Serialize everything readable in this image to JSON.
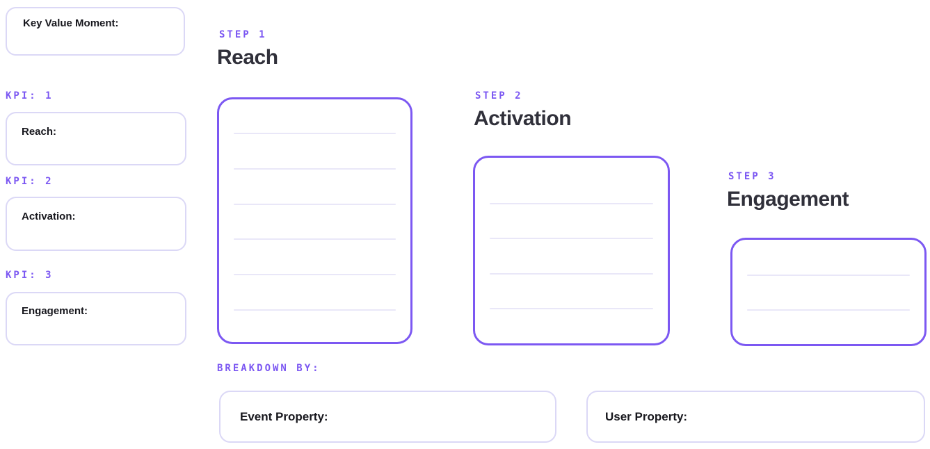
{
  "sidebar": {
    "key_value_moment_label": "Key Value Moment:",
    "kpis": [
      {
        "tag": "KPI: 1",
        "label": "Reach:"
      },
      {
        "tag": "KPI: 2",
        "label": "Activation:"
      },
      {
        "tag": "KPI: 3",
        "label": "Engagement:"
      }
    ]
  },
  "steps": [
    {
      "tag": "STEP 1",
      "title": "Reach",
      "note_lines": 6
    },
    {
      "tag": "STEP 2",
      "title": "Activation",
      "note_lines": 4
    },
    {
      "tag": "STEP 3",
      "title": "Engagement",
      "note_lines": 2
    }
  ],
  "breakdown": {
    "tag": "BREAKDOWN BY:",
    "fields": [
      {
        "label": "Event Property:"
      },
      {
        "label": "User Property:"
      }
    ]
  },
  "colors": {
    "accent_purple": "#7C58F2",
    "soft_border": "#DBD8F6",
    "rule_line": "#E9E7F8",
    "heading_text": "#30303A",
    "label_text": "#17171D"
  }
}
